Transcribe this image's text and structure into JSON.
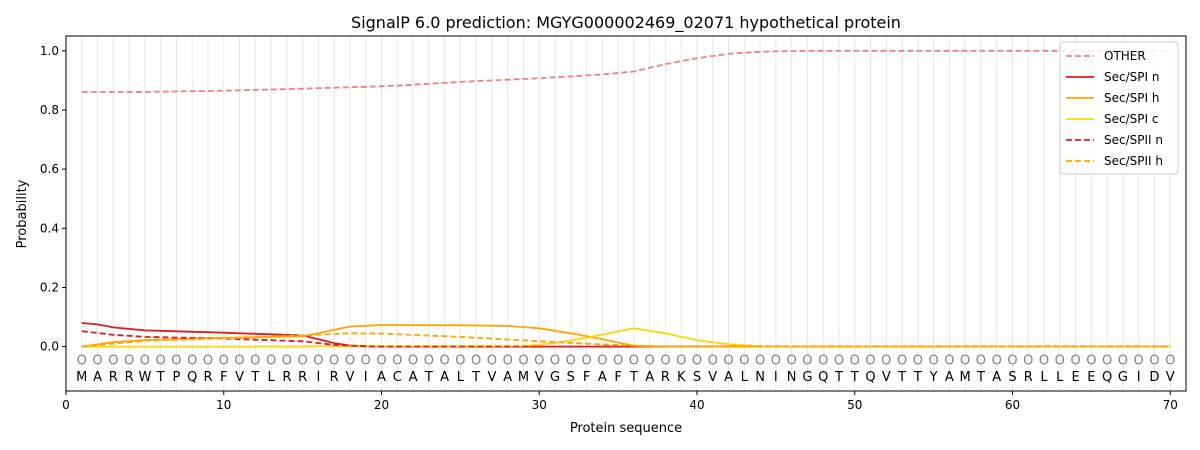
{
  "chart_data": {
    "type": "line",
    "title": "SignalP 6.0 prediction: MGYG000002469_02071 hypothetical protein",
    "xlabel": "Protein sequence",
    "ylabel": "Probability",
    "xlim": [
      0,
      71
    ],
    "ylim": [
      -0.15,
      1.05
    ],
    "grid": "vertical lines at each residue",
    "legend_position": "top-right",
    "x_ticks": [
      0,
      10,
      20,
      30,
      40,
      50,
      60,
      70
    ],
    "y_ticks": [
      0.0,
      0.2,
      0.4,
      0.6,
      0.8,
      1.0
    ],
    "x_tick_labels": [
      "0",
      "10",
      "20",
      "30",
      "40",
      "50",
      "60",
      "70"
    ],
    "y_tick_labels": [
      "0.0",
      "0.2",
      "0.4",
      "0.6",
      "0.8",
      "1.0"
    ],
    "sequence": [
      "M",
      "A",
      "R",
      "R",
      "W",
      "T",
      "P",
      "Q",
      "R",
      "F",
      "V",
      "T",
      "L",
      "R",
      "R",
      "I",
      "R",
      "V",
      "I",
      "A",
      "C",
      "A",
      "T",
      "A",
      "L",
      "T",
      "V",
      "A",
      "M",
      "V",
      "G",
      "S",
      "F",
      "A",
      "F",
      "T",
      "A",
      "R",
      "K",
      "S",
      "V",
      "A",
      "L",
      "N",
      "I",
      "N",
      "G",
      "Q",
      "T",
      "T",
      "Q",
      "V",
      "T",
      "T",
      "Y",
      "A",
      "M",
      "T",
      "A",
      "S",
      "R",
      "L",
      "L",
      "E",
      "E",
      "Q",
      "G",
      "I",
      "D",
      "V"
    ],
    "region_labels": [
      "O",
      "O",
      "O",
      "O",
      "O",
      "O",
      "O",
      "O",
      "O",
      "O",
      "O",
      "O",
      "O",
      "O",
      "O",
      "O",
      "O",
      "O",
      "O",
      "O",
      "O",
      "O",
      "O",
      "O",
      "O",
      "O",
      "O",
      "O",
      "O",
      "O",
      "O",
      "O",
      "O",
      "O",
      "O",
      "O",
      "O",
      "O",
      "O",
      "O",
      "O",
      "O",
      "O",
      "O",
      "O",
      "O",
      "O",
      "O",
      "O",
      "O",
      "O",
      "O",
      "O",
      "O",
      "O",
      "O",
      "O",
      "O",
      "O",
      "O",
      "O",
      "O",
      "O",
      "O",
      "O",
      "O",
      "O",
      "O",
      "O",
      "O"
    ],
    "series": [
      {
        "name": "OTHER",
        "color": "#f08080",
        "dash": "dashed",
        "points": [
          [
            1,
            0.86
          ],
          [
            5,
            0.861
          ],
          [
            10,
            0.865
          ],
          [
            15,
            0.872
          ],
          [
            20,
            0.88
          ],
          [
            22,
            0.885
          ],
          [
            25,
            0.895
          ],
          [
            30,
            0.907
          ],
          [
            34,
            0.92
          ],
          [
            36,
            0.93
          ],
          [
            38,
            0.955
          ],
          [
            40,
            0.975
          ],
          [
            42,
            0.99
          ],
          [
            44,
            0.997
          ],
          [
            47,
            1.0
          ],
          [
            70,
            1.0
          ]
        ]
      },
      {
        "name": "Sec/SPI n",
        "color": "#e31a1c",
        "dash": "solid",
        "points": [
          [
            1,
            0.08
          ],
          [
            2,
            0.075
          ],
          [
            3,
            0.065
          ],
          [
            5,
            0.055
          ],
          [
            10,
            0.047
          ],
          [
            15,
            0.038
          ],
          [
            16,
            0.025
          ],
          [
            17,
            0.012
          ],
          [
            18,
            0.003
          ],
          [
            20,
            0.0
          ],
          [
            70,
            0.0
          ]
        ]
      },
      {
        "name": "Sec/SPI h",
        "color": "#ffa500",
        "dash": "solid",
        "points": [
          [
            1,
            0.0
          ],
          [
            3,
            0.015
          ],
          [
            5,
            0.022
          ],
          [
            10,
            0.03
          ],
          [
            15,
            0.035
          ],
          [
            16,
            0.045
          ],
          [
            18,
            0.068
          ],
          [
            20,
            0.073
          ],
          [
            25,
            0.072
          ],
          [
            28,
            0.07
          ],
          [
            30,
            0.062
          ],
          [
            32,
            0.045
          ],
          [
            34,
            0.025
          ],
          [
            36,
            0.003
          ],
          [
            38,
            0.0
          ],
          [
            70,
            0.0
          ]
        ]
      },
      {
        "name": "Sec/SPI c",
        "color": "#ffd700",
        "dash": "solid",
        "points": [
          [
            1,
            0.0
          ],
          [
            10,
            0.0
          ],
          [
            29,
            0.002
          ],
          [
            31,
            0.012
          ],
          [
            33,
            0.03
          ],
          [
            36,
            0.062
          ],
          [
            38,
            0.045
          ],
          [
            40,
            0.022
          ],
          [
            42,
            0.008
          ],
          [
            44,
            0.001
          ],
          [
            70,
            0.0
          ]
        ]
      },
      {
        "name": "Sec/SPII n",
        "color": "#e31a1c",
        "dash": "dashed",
        "points": [
          [
            1,
            0.052
          ],
          [
            3,
            0.04
          ],
          [
            5,
            0.033
          ],
          [
            10,
            0.027
          ],
          [
            15,
            0.018
          ],
          [
            17,
            0.006
          ],
          [
            19,
            0.001
          ],
          [
            20,
            0.0
          ],
          [
            70,
            0.0
          ]
        ]
      },
      {
        "name": "Sec/SPII h",
        "color": "#ffa500",
        "dash": "dashed",
        "points": [
          [
            1,
            0.0
          ],
          [
            3,
            0.01
          ],
          [
            5,
            0.02
          ],
          [
            10,
            0.028
          ],
          [
            15,
            0.038
          ],
          [
            18,
            0.045
          ],
          [
            20,
            0.044
          ],
          [
            25,
            0.033
          ],
          [
            30,
            0.018
          ],
          [
            33,
            0.01
          ],
          [
            36,
            0.003
          ],
          [
            38,
            0.0
          ],
          [
            70,
            0.0
          ]
        ]
      }
    ]
  }
}
